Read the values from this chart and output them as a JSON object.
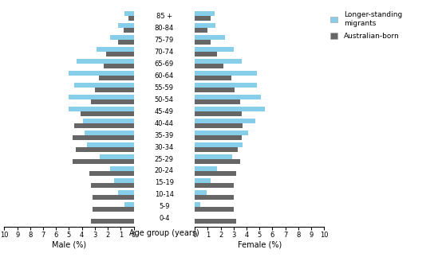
{
  "age_groups": [
    "0-4",
    "5-9",
    "10-14",
    "15-19",
    "20-24",
    "25-29",
    "30-34",
    "35-39",
    "40-44",
    "45-49",
    "50-54",
    "55-59",
    "60-64",
    "65-69",
    "70-74",
    "75-79",
    "80-84",
    "85 +"
  ],
  "male_migrants": [
    0.0,
    0.7,
    1.2,
    1.5,
    1.8,
    2.6,
    3.6,
    3.8,
    3.9,
    5.0,
    5.0,
    4.6,
    5.0,
    4.4,
    2.9,
    1.8,
    1.2,
    0.7
  ],
  "male_ausborn": [
    3.3,
    3.2,
    3.2,
    3.3,
    3.4,
    4.7,
    4.5,
    4.7,
    4.6,
    4.1,
    3.3,
    3.0,
    2.7,
    2.3,
    2.1,
    1.2,
    0.8,
    0.4
  ],
  "female_migrants": [
    0.0,
    0.4,
    0.9,
    1.2,
    1.7,
    2.9,
    3.7,
    4.1,
    4.7,
    5.4,
    5.1,
    4.8,
    4.8,
    3.6,
    3.0,
    2.3,
    1.6,
    1.5
  ],
  "female_ausborn": [
    3.2,
    3.0,
    3.0,
    3.0,
    3.2,
    3.5,
    3.3,
    3.6,
    3.7,
    3.6,
    3.5,
    3.1,
    2.8,
    2.2,
    1.7,
    1.2,
    1.0,
    1.2
  ],
  "color_migrants": "#87CEEB",
  "color_ausborn": "#666666",
  "xlim": 10,
  "xlabel_male": "Male (%)",
  "xlabel_female": "Female (%)",
  "xlabel_center": "Age group (years)",
  "legend_migrants": "Longer-standing\nmigrants",
  "legend_ausborn": "Australian-born"
}
